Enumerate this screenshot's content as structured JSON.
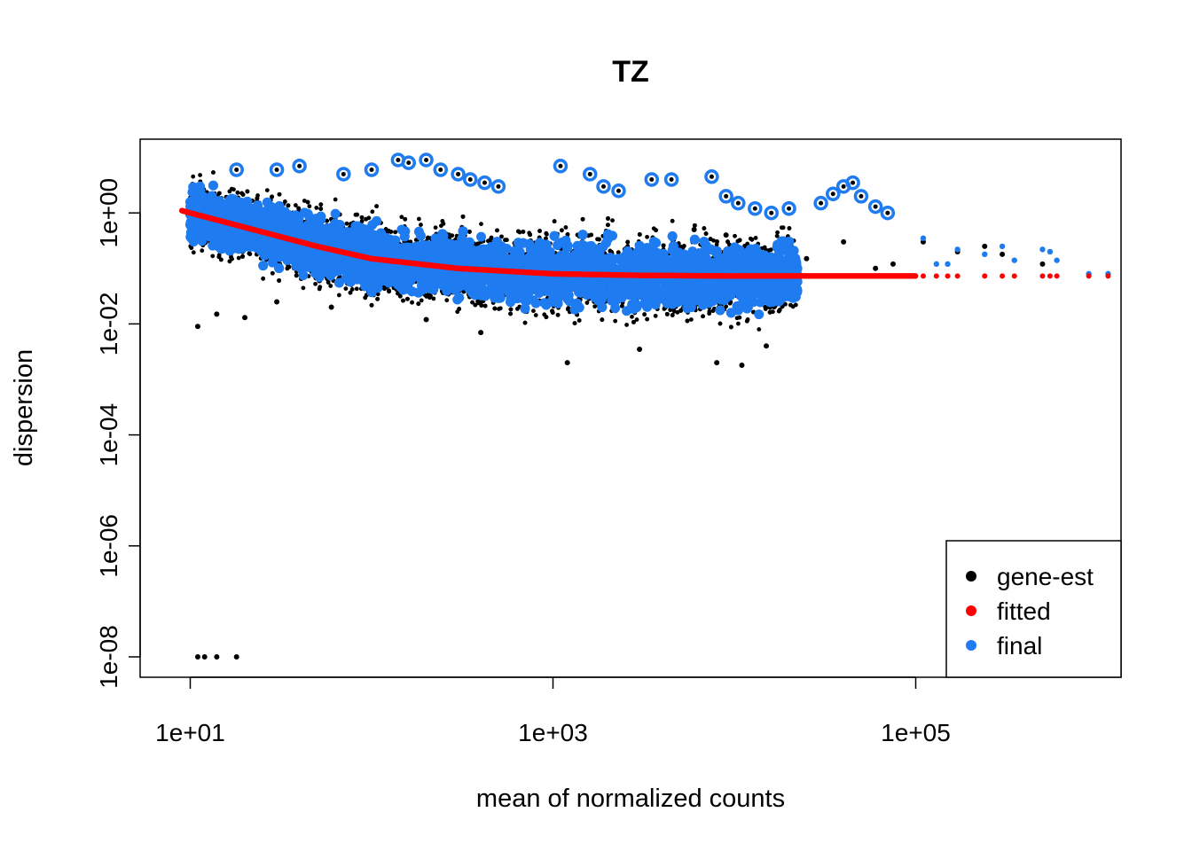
{
  "chart_data": {
    "type": "scatter",
    "title": "TZ",
    "xlabel": "mean of normalized counts",
    "ylabel": "dispersion",
    "x_scale": "log10",
    "y_scale": "log10",
    "xlim": [
      7,
      1500000
    ],
    "ylim": [
      1.6e-09,
      30
    ],
    "x_ticks": [
      {
        "value": 10,
        "label": "1e+01"
      },
      {
        "value": 1000,
        "label": "1e+03"
      },
      {
        "value": 100000,
        "label": "1e+05"
      }
    ],
    "y_ticks": [
      {
        "value": 1e-08,
        "label": "1e-08"
      },
      {
        "value": 1e-06,
        "label": "1e-06"
      },
      {
        "value": 0.0001,
        "label": "1e-04"
      },
      {
        "value": 0.01,
        "label": "1e-02"
      },
      {
        "value": 1,
        "label": "1e+00"
      }
    ],
    "grid": false,
    "legend_position": "bottom-right",
    "legend": [
      {
        "label": "gene-est",
        "color": "#000000"
      },
      {
        "label": "fitted",
        "color": "#FF0000"
      },
      {
        "label": "final",
        "color": "#1E7BF0"
      }
    ],
    "series": [
      {
        "name": "gene-est",
        "color": "#000000",
        "points_note": "dense cloud ~10 to ~20000 counts, dispersion ~0.002 to ~5",
        "points": [
          [
            11,
            1e-08
          ],
          [
            12,
            1e-08
          ],
          [
            14,
            1e-08
          ],
          [
            18,
            1e-08
          ],
          [
            11,
            0.009
          ],
          [
            14,
            0.015
          ],
          [
            20,
            0.013
          ],
          [
            30,
            0.025
          ],
          [
            60,
            0.02
          ],
          [
            200,
            0.012
          ],
          [
            400,
            0.007
          ],
          [
            1200,
            0.002
          ],
          [
            3000,
            0.0035
          ],
          [
            8000,
            0.002
          ],
          [
            11000,
            0.0018
          ],
          [
            15000,
            0.004
          ],
          [
            110000,
            0.3
          ],
          [
            170000,
            0.2
          ],
          [
            500000,
            0.12
          ],
          [
            550000,
            0.2
          ],
          [
            300000,
            0.18
          ],
          [
            240000,
            0.25
          ],
          [
            60000,
            0.1
          ],
          [
            75000,
            0.12
          ],
          [
            6000,
            0.5
          ],
          [
            9000,
            0.4
          ],
          [
            25000,
            0.15
          ],
          [
            40000,
            0.3
          ]
        ]
      },
      {
        "name": "fitted",
        "color": "#FF0000",
        "curve": [
          [
            9,
            1.1
          ],
          [
            10,
            1.0
          ],
          [
            20,
            0.55
          ],
          [
            50,
            0.25
          ],
          [
            100,
            0.15
          ],
          [
            300,
            0.1
          ],
          [
            1000,
            0.08
          ],
          [
            3000,
            0.075
          ],
          [
            10000,
            0.073
          ],
          [
            100000,
            0.073
          ],
          [
            1200000,
            0.073
          ]
        ]
      },
      {
        "name": "final",
        "color": "#1E7BF0",
        "outliers": [
          [
            18,
            6
          ],
          [
            30,
            6
          ],
          [
            40,
            7
          ],
          [
            70,
            5
          ],
          [
            100,
            6
          ],
          [
            140,
            9
          ],
          [
            160,
            8
          ],
          [
            200,
            9
          ],
          [
            240,
            6
          ],
          [
            300,
            5
          ],
          [
            350,
            4
          ],
          [
            420,
            3.5
          ],
          [
            500,
            3
          ],
          [
            1100,
            7
          ],
          [
            1600,
            5
          ],
          [
            1900,
            3
          ],
          [
            2300,
            2.5
          ],
          [
            3500,
            4
          ],
          [
            4500,
            4
          ],
          [
            7500,
            4.5
          ],
          [
            9000,
            2
          ],
          [
            10500,
            1.5
          ],
          [
            13000,
            1.2
          ],
          [
            16000,
            1.0
          ],
          [
            20000,
            1.2
          ],
          [
            30000,
            1.5
          ],
          [
            35000,
            2.2
          ],
          [
            40000,
            3.0
          ],
          [
            45000,
            3.5
          ],
          [
            50000,
            2.0
          ],
          [
            60000,
            1.3
          ],
          [
            70000,
            1.0
          ]
        ],
        "points": [
          [
            110000,
            0.35
          ],
          [
            170000,
            0.22
          ],
          [
            500000,
            0.22
          ],
          [
            550000,
            0.2
          ],
          [
            240000,
            0.18
          ],
          [
            300000,
            0.25
          ],
          [
            1150000,
            0.08
          ],
          [
            900000,
            0.08
          ],
          [
            130000,
            0.12
          ],
          [
            150000,
            0.12
          ],
          [
            350000,
            0.14
          ],
          [
            600000,
            0.14
          ]
        ]
      }
    ]
  }
}
